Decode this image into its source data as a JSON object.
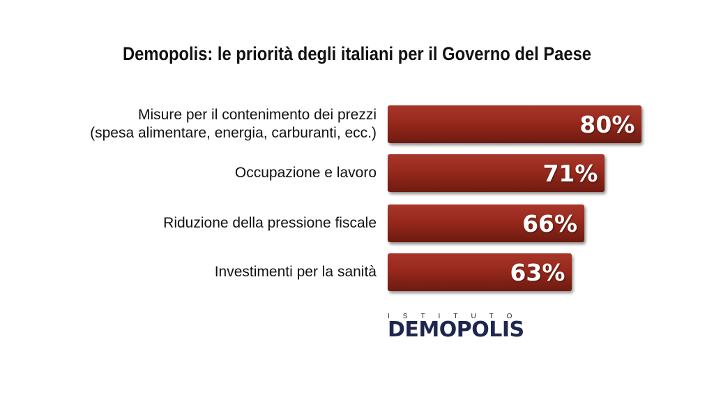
{
  "chart_data": {
    "type": "bar",
    "orientation": "horizontal",
    "title": "Demopolis: le priorità degli italiani per il Governo del Paese",
    "categories": [
      "Misure per il contenimento dei prezzi\n(spesa alimentare, energia, carburanti, ecc.)",
      "Occupazione e lavoro",
      "Riduzione della pressione fiscale",
      "Investimenti per la sanità"
    ],
    "values": [
      80,
      71,
      66,
      63
    ],
    "value_labels": [
      "80%",
      "71%",
      "66%",
      "63%"
    ],
    "color": "#97291c"
  },
  "logo": {
    "top": "ISTITUTO",
    "name": "DEMOPOLIS"
  }
}
